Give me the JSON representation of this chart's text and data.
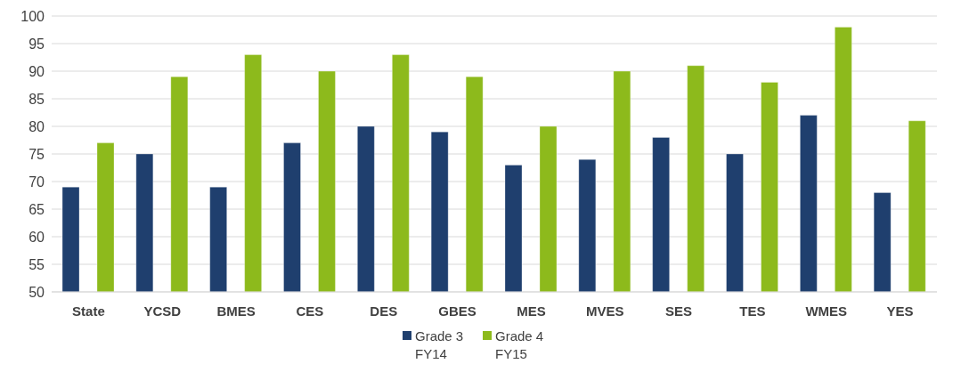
{
  "chart_data": {
    "type": "bar",
    "categories": [
      "State",
      "YCSD",
      "BMES",
      "CES",
      "DES",
      "GBES",
      "MES",
      "MVES",
      "SES",
      "TES",
      "WMES",
      "YES"
    ],
    "series": [
      {
        "name": "Grade 3 FY14",
        "color": "#1f3f6e",
        "values": [
          69,
          75,
          69,
          77,
          80,
          79,
          73,
          74,
          78,
          75,
          82,
          68
        ]
      },
      {
        "name": "Grade 4 FY15",
        "color": "#8dba1c",
        "values": [
          77,
          89,
          93,
          90,
          93,
          89,
          80,
          90,
          91,
          88,
          98,
          81
        ]
      }
    ],
    "ylim": [
      50,
      100
    ],
    "yticks": [
      50,
      55,
      60,
      65,
      70,
      75,
      80,
      85,
      90,
      95,
      100
    ],
    "grid": "y",
    "legend": "bottom"
  }
}
